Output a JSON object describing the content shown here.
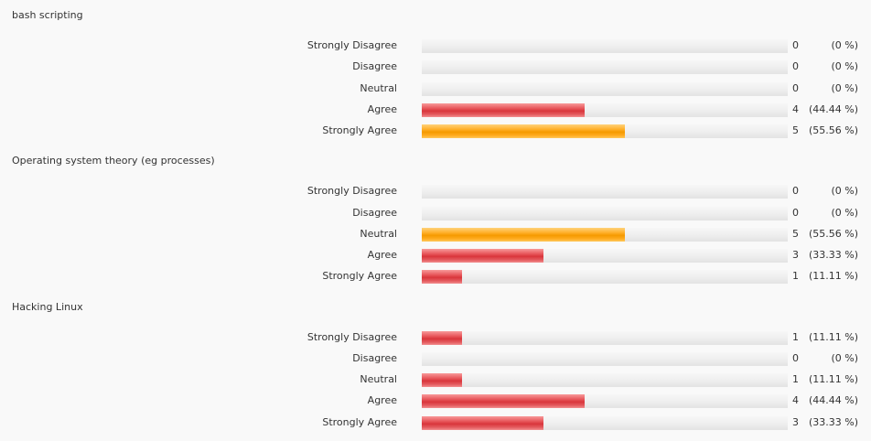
{
  "colors": {
    "background": "#f9f9f9",
    "text": "#333333",
    "track": "#ececec",
    "highest_bar": "#ffa500",
    "other_bar": "#e0393e"
  },
  "questions": [
    {
      "title": "bash scripting",
      "options": [
        {
          "label": "Strongly Disagree",
          "count": "0",
          "percent": "(0 %)",
          "fraction": 0,
          "highlight": false
        },
        {
          "label": "Disagree",
          "count": "0",
          "percent": "(0 %)",
          "fraction": 0,
          "highlight": false
        },
        {
          "label": "Neutral",
          "count": "0",
          "percent": "(0 %)",
          "fraction": 0,
          "highlight": false
        },
        {
          "label": "Agree",
          "count": "4",
          "percent": "(44.44 %)",
          "fraction": 0.4444,
          "highlight": false
        },
        {
          "label": "Strongly Agree",
          "count": "5",
          "percent": "(55.56 %)",
          "fraction": 0.5556,
          "highlight": true
        }
      ]
    },
    {
      "title": "Operating system theory (eg processes)",
      "options": [
        {
          "label": "Strongly Disagree",
          "count": "0",
          "percent": "(0 %)",
          "fraction": 0,
          "highlight": false
        },
        {
          "label": "Disagree",
          "count": "0",
          "percent": "(0 %)",
          "fraction": 0,
          "highlight": false
        },
        {
          "label": "Neutral",
          "count": "5",
          "percent": "(55.56 %)",
          "fraction": 0.5556,
          "highlight": true
        },
        {
          "label": "Agree",
          "count": "3",
          "percent": "(33.33 %)",
          "fraction": 0.3333,
          "highlight": false
        },
        {
          "label": "Strongly Agree",
          "count": "1",
          "percent": "(11.11 %)",
          "fraction": 0.1111,
          "highlight": false
        }
      ]
    },
    {
      "title": "Hacking Linux",
      "options": [
        {
          "label": "Strongly Disagree",
          "count": "1",
          "percent": "(11.11 %)",
          "fraction": 0.1111,
          "highlight": false
        },
        {
          "label": "Disagree",
          "count": "0",
          "percent": "(0 %)",
          "fraction": 0,
          "highlight": false
        },
        {
          "label": "Neutral",
          "count": "1",
          "percent": "(11.11 %)",
          "fraction": 0.1111,
          "highlight": false
        },
        {
          "label": "Agree",
          "count": "4",
          "percent": "(44.44 %)",
          "fraction": 0.4444,
          "highlight": false
        },
        {
          "label": "Strongly Agree",
          "count": "3",
          "percent": "(33.33 %)",
          "fraction": 0.3333,
          "highlight": false
        }
      ]
    }
  ]
}
